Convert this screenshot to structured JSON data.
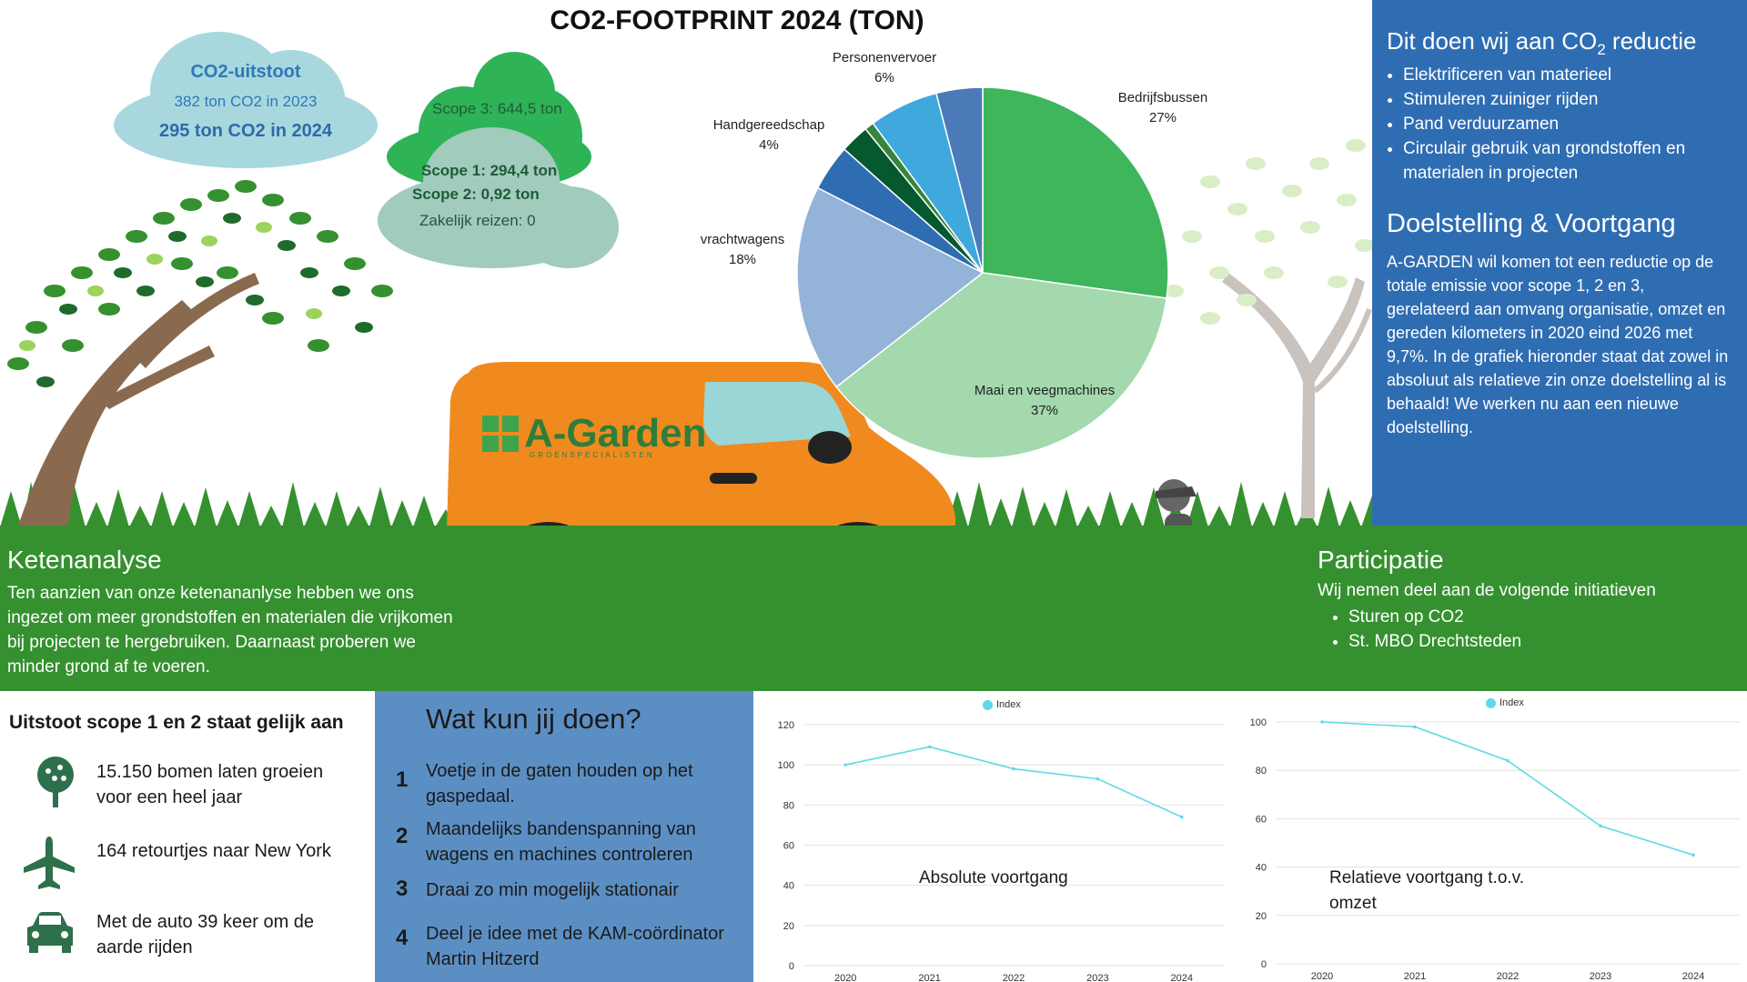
{
  "title": "CO2-FOOTPRINT 2024 (TON)",
  "co2_cloud": {
    "heading": "CO2-uitstoot",
    "line_2023": "382 ton CO2 in 2023",
    "line_2024": "295 ton CO2 in 2024"
  },
  "scopes": {
    "scope3": "Scope 3:  644,5 ton",
    "scope1": "Scope 1: 294,4 ton",
    "scope2": "Scope 2: 0,92 ton",
    "travel": "Zakelijk reizen: 0"
  },
  "van_logo": {
    "brand": "A-Garden",
    "tagline": "GROENSPECIALISTEN"
  },
  "reduction": {
    "title_prefix": "Dit doen wij aan  CO",
    "title_sub": "2",
    "title_suffix": " reductie",
    "items": [
      "Elektrificeren van materieel",
      "Stimuleren zuiniger rijden",
      "Pand verduurzamen",
      "Circulair gebruik van grondstoffen en materialen in projecten"
    ]
  },
  "goal": {
    "title": "Doelstelling & Voortgang",
    "text": "A-GARDEN wil komen tot een reductie op de totale emissie voor scope 1, 2 en 3, gerelateerd aan omvang organisatie, omzet en gereden kilometers in 2020 eind 2026 met 9,7%. In de grafiek hieronder staat dat zowel in absoluut als relatieve zin onze doelstelling al is behaald! We werken nu aan een nieuwe doelstelling."
  },
  "keten": {
    "title": "Ketenanalyse",
    "text": "Ten aanzien van onze ketenananlyse hebben we ons ingezet om meer grondstoffen en materialen die vrijkomen bij projecten te hergebruiken. Daarnaast proberen we minder grond af te voeren."
  },
  "participatie": {
    "title": "Participatie",
    "intro": "Wij nemen deel aan de volgende initiatieven",
    "items": [
      "Sturen op CO2",
      "St. MBO Drechtsteden"
    ]
  },
  "equivalents": {
    "title": "Uitstoot scope 1 en 2 staat gelijk aan",
    "items": [
      {
        "icon": "tree-icon",
        "text": "15.150 bomen laten groeien voor een heel jaar"
      },
      {
        "icon": "airplane-icon",
        "text": "164 retourtjes naar New York"
      },
      {
        "icon": "car-icon",
        "text": "Met de auto 39 keer om de aarde rijden"
      }
    ]
  },
  "actions": {
    "title": "Wat kun jij doen?",
    "items": [
      {
        "num": "1",
        "text": "Voetje in de gaten houden op het gaspedaal."
      },
      {
        "num": "2",
        "text": "Maandelijks bandenspanning van wagens en machines controleren"
      },
      {
        "num": "3",
        "text": "Draai zo min mogelijk stationair"
      },
      {
        "num": "4",
        "text": "Deel je idee met de KAM-coördinator Martin Hitzerd"
      }
    ]
  },
  "colors": {
    "pie": [
      "#3fb55c",
      "#a3d9ad",
      "#93b3d8",
      "#2f6db3",
      "#06592f",
      "#36853e",
      "#3fa8dc",
      "#4a7ab8"
    ],
    "line": "#5fd9e8",
    "panel_blue": "#2f6db3",
    "grass": "#35912f",
    "van": "#f08a1e"
  },
  "chart_data": [
    {
      "type": "pie",
      "title": "CO2-FOOTPRINT 2024 (TON)",
      "slices": [
        {
          "label": "Bedrijfsbussen",
          "value": 27
        },
        {
          "label": "Maai en veegmachines",
          "value": 37
        },
        {
          "label": "vrachtwagens",
          "value": 18
        },
        {
          "label": "Handgereedschap",
          "value": 4
        },
        {
          "label": "",
          "value": 2.5
        },
        {
          "label": "",
          "value": 0.8
        },
        {
          "label": "Personenvervoer",
          "value": 6
        },
        {
          "label": "",
          "value": 4
        }
      ],
      "percent_labels": [
        "27%",
        "37%",
        "18%",
        "4%",
        "",
        "",
        "6%",
        ""
      ]
    },
    {
      "type": "line",
      "series_name": "Index",
      "categories": [
        "2020",
        "2021",
        "2022",
        "2023",
        "2024"
      ],
      "values": [
        100,
        109,
        98,
        93,
        74
      ],
      "ylim": [
        0,
        120
      ],
      "yticks": [
        0,
        20,
        40,
        60,
        80,
        100,
        120
      ],
      "annotation": "Absolute voortgang",
      "grid": true,
      "legend": "top"
    },
    {
      "type": "line",
      "series_name": "Index",
      "categories": [
        "2020",
        "2021",
        "2022",
        "2023",
        "2024"
      ],
      "values": [
        100,
        98,
        84,
        57,
        45
      ],
      "ylim": [
        0,
        100
      ],
      "yticks": [
        0,
        20,
        40,
        60,
        80,
        100
      ],
      "annotation": "Relatieve voortgang t.o.v. omzet",
      "grid": true,
      "legend": "top"
    }
  ]
}
